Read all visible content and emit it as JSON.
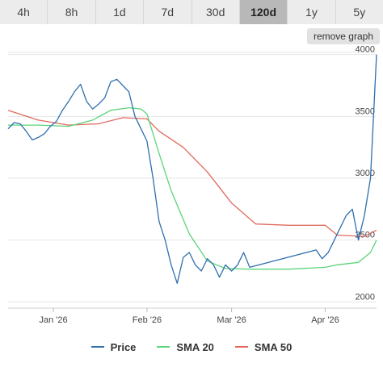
{
  "tabs": [
    {
      "label": "4h",
      "active": false
    },
    {
      "label": "8h",
      "active": false
    },
    {
      "label": "1d",
      "active": false
    },
    {
      "label": "7d",
      "active": false
    },
    {
      "label": "30d",
      "active": false
    },
    {
      "label": "120d",
      "active": true
    },
    {
      "label": "1y",
      "active": false
    },
    {
      "label": "5y",
      "active": false
    }
  ],
  "remove_graph_label": "remove graph",
  "colors": {
    "price": "#2f6fae",
    "sma20": "#5bd47a",
    "sma50": "#e06a5e",
    "grid": "#e6e6e6",
    "tab_active": "#b8b8b8"
  },
  "chart_data": {
    "type": "line",
    "title": "",
    "xlabel": "",
    "ylabel": "",
    "x_start": "2025-12-17",
    "x_end": "2026-04-18",
    "x_ticks": [
      {
        "label": "Jan '26",
        "date": "2026-01-01"
      },
      {
        "label": "Feb '26",
        "date": "2026-02-01"
      },
      {
        "label": "Mar '26",
        "date": "2026-03-01"
      },
      {
        "label": "Apr '26",
        "date": "2026-04-01"
      }
    ],
    "y_ticks": [
      2000,
      2500,
      3000,
      3500,
      4000
    ],
    "ylim": [
      1950,
      4050
    ],
    "grid": "horizontal",
    "legend_position": "bottom",
    "series": [
      {
        "name": "Price",
        "color": "#2f6fae",
        "points": [
          [
            "2025-12-17",
            3400
          ],
          [
            "2025-12-19",
            3450
          ],
          [
            "2025-12-21",
            3440
          ],
          [
            "2025-12-23",
            3380
          ],
          [
            "2025-12-25",
            3310
          ],
          [
            "2025-12-27",
            3330
          ],
          [
            "2025-12-29",
            3360
          ],
          [
            "2025-12-31",
            3420
          ],
          [
            "2026-01-02",
            3460
          ],
          [
            "2026-01-04",
            3550
          ],
          [
            "2026-01-06",
            3620
          ],
          [
            "2026-01-08",
            3700
          ],
          [
            "2026-01-10",
            3760
          ],
          [
            "2026-01-12",
            3620
          ],
          [
            "2026-01-14",
            3560
          ],
          [
            "2026-01-16",
            3600
          ],
          [
            "2026-01-18",
            3650
          ],
          [
            "2026-01-20",
            3780
          ],
          [
            "2026-01-22",
            3800
          ],
          [
            "2026-01-24",
            3750
          ],
          [
            "2026-01-26",
            3700
          ],
          [
            "2026-01-28",
            3500
          ],
          [
            "2026-01-30",
            3400
          ],
          [
            "2026-02-01",
            3300
          ],
          [
            "2026-02-03",
            3000
          ],
          [
            "2026-02-05",
            2650
          ],
          [
            "2026-02-07",
            2500
          ],
          [
            "2026-02-09",
            2300
          ],
          [
            "2026-02-11",
            2150
          ],
          [
            "2026-02-13",
            2360
          ],
          [
            "2026-02-15",
            2400
          ],
          [
            "2026-02-17",
            2300
          ],
          [
            "2026-02-19",
            2250
          ],
          [
            "2026-02-21",
            2350
          ],
          [
            "2026-02-23",
            2300
          ],
          [
            "2026-02-25",
            2200
          ],
          [
            "2026-02-27",
            2300
          ],
          [
            "2026-03-01",
            2250
          ],
          [
            "2026-03-03",
            2300
          ],
          [
            "2026-03-05",
            2400
          ],
          [
            "2026-03-07",
            2280
          ],
          [
            "2026-03-29",
            2420
          ],
          [
            "2026-03-31",
            2350
          ],
          [
            "2026-04-02",
            2400
          ],
          [
            "2026-04-04",
            2500
          ],
          [
            "2026-04-06",
            2600
          ],
          [
            "2026-04-08",
            2700
          ],
          [
            "2026-04-10",
            2750
          ],
          [
            "2026-04-12",
            2500
          ],
          [
            "2026-04-14",
            2700
          ],
          [
            "2026-04-16",
            3000
          ],
          [
            "2026-04-18",
            4000
          ]
        ]
      },
      {
        "name": "SMA 20",
        "color": "#5bd47a",
        "points": [
          [
            "2025-12-17",
            3430
          ],
          [
            "2025-12-27",
            3430
          ],
          [
            "2026-01-06",
            3420
          ],
          [
            "2026-01-14",
            3470
          ],
          [
            "2026-01-20",
            3550
          ],
          [
            "2026-01-26",
            3570
          ],
          [
            "2026-01-30",
            3560
          ],
          [
            "2026-02-01",
            3520
          ],
          [
            "2026-02-05",
            3200
          ],
          [
            "2026-02-09",
            2900
          ],
          [
            "2026-02-15",
            2550
          ],
          [
            "2026-02-21",
            2330
          ],
          [
            "2026-02-27",
            2270
          ],
          [
            "2026-03-07",
            2265
          ],
          [
            "2026-03-20",
            2265
          ],
          [
            "2026-04-01",
            2280
          ],
          [
            "2026-04-05",
            2300
          ],
          [
            "2026-04-12",
            2320
          ],
          [
            "2026-04-16",
            2400
          ],
          [
            "2026-04-18",
            2500
          ]
        ]
      },
      {
        "name": "SMA 50",
        "color": "#e06a5e",
        "points": [
          [
            "2025-12-17",
            3550
          ],
          [
            "2025-12-27",
            3470
          ],
          [
            "2026-01-06",
            3430
          ],
          [
            "2026-01-16",
            3440
          ],
          [
            "2026-01-24",
            3490
          ],
          [
            "2026-02-01",
            3480
          ],
          [
            "2026-02-05",
            3380
          ],
          [
            "2026-02-13",
            3250
          ],
          [
            "2026-02-21",
            3050
          ],
          [
            "2026-03-01",
            2800
          ],
          [
            "2026-03-09",
            2630
          ],
          [
            "2026-03-20",
            2620
          ],
          [
            "2026-04-01",
            2620
          ],
          [
            "2026-04-05",
            2540
          ],
          [
            "2026-04-14",
            2530
          ],
          [
            "2026-04-18",
            2580
          ]
        ]
      }
    ]
  }
}
